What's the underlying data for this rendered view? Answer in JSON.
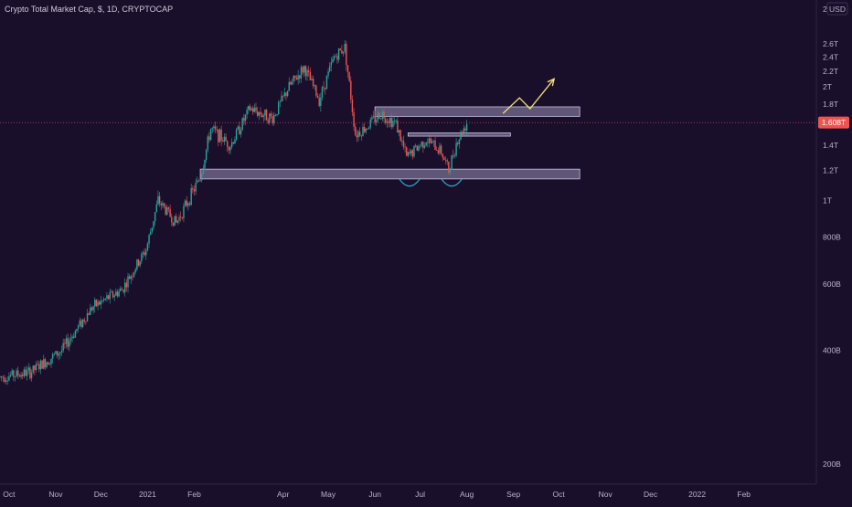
{
  "header": {
    "title": "Crypto Total Market Cap, $, 1D, CRYPTOCAP"
  },
  "axis": {
    "currency": "USD",
    "y_ticks": [
      "2.6T",
      "2.4T",
      "2.2T",
      "2T",
      "1.8T",
      "1.4T",
      "1.2T",
      "1T",
      "800B",
      "600B",
      "400B",
      "200B"
    ],
    "top_tick": "2",
    "x_ticks": [
      "Oct",
      "Nov",
      "Dec",
      "2021",
      "Feb",
      "Apr",
      "May",
      "Jun",
      "Jul",
      "Aug",
      "Sep",
      "Oct",
      "Nov",
      "Dec",
      "2022",
      "Feb"
    ],
    "last_price_label": "1.608T"
  },
  "colors": {
    "background": "#1a0f2b",
    "up": "#26a69a",
    "down": "#ef5350",
    "zone_fill": "#9b92b8",
    "arrow": "#f6e27a",
    "arc": "#2aa9c9",
    "price_tag": "#ef5350"
  },
  "chart_data": {
    "type": "candlestick",
    "title": "Crypto Total Market Cap, $, 1D, CRYPTOCAP",
    "y_unit": "USD",
    "scale": "log",
    "grid": false,
    "last_price": "1.608T",
    "x_range": [
      "2020-09-25",
      "2022-02-20"
    ],
    "trend_points": [
      [
        "2020-09-25",
        340
      ],
      [
        "2020-10-15",
        350
      ],
      [
        "2020-11-05",
        400
      ],
      [
        "2020-11-25",
        520
      ],
      [
        "2020-12-15",
        580
      ],
      [
        "2020-12-31",
        740
      ],
      [
        "2021-01-08",
        1000
      ],
      [
        "2021-01-20",
        870
      ],
      [
        "2021-02-05",
        1150
      ],
      [
        "2021-02-12",
        1550
      ],
      [
        "2021-02-25",
        1400
      ],
      [
        "2021-03-10",
        1750
      ],
      [
        "2021-03-25",
        1650
      ],
      [
        "2021-04-05",
        2000
      ],
      [
        "2021-04-15",
        2250
      ],
      [
        "2021-04-25",
        1850
      ],
      [
        "2021-05-05",
        2400
      ],
      [
        "2021-05-12",
        2550
      ],
      [
        "2021-05-19",
        1500
      ],
      [
        "2021-05-25",
        1550
      ],
      [
        "2021-06-05",
        1700
      ],
      [
        "2021-06-15",
        1600
      ],
      [
        "2021-06-22",
        1300
      ],
      [
        "2021-07-05",
        1450
      ],
      [
        "2021-07-15",
        1350
      ],
      [
        "2021-07-20",
        1200
      ],
      [
        "2021-07-25",
        1420
      ],
      [
        "2021-08-01",
        1608
      ]
    ],
    "annotations": {
      "zones": [
        {
          "from": "2021-06-01",
          "to": "2021-10-15",
          "low": 1670,
          "high": 1770
        },
        {
          "from": "2021-06-23",
          "to": "2021-08-30",
          "low": 1480,
          "high": 1510
        },
        {
          "from": "2021-02-05",
          "to": "2021-10-15",
          "low": 1140,
          "high": 1210
        }
      ],
      "bottom_arcs": [
        "2021-06-24",
        "2021-07-22"
      ],
      "projection_arrow": [
        [
          "2021-08-25",
          1700
        ],
        [
          "2021-09-05",
          1870
        ],
        [
          "2021-09-12",
          1750
        ],
        [
          "2021-09-28",
          2100
        ]
      ]
    }
  }
}
